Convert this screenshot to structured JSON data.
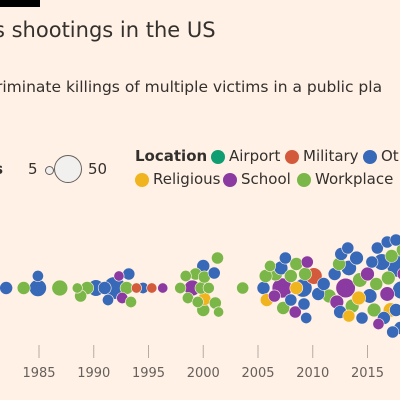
{
  "header": {
    "title": "s shootings in the US",
    "subtitle": "riminate killings of multiple victims in a public pla"
  },
  "size_legend": {
    "title": "es",
    "small_value": "5",
    "large_value": "50"
  },
  "location_legend": {
    "title": "Location",
    "items": [
      {
        "label": "Airport",
        "color": "#0f9d72"
      },
      {
        "label": "Military",
        "color": "#d45a3c"
      },
      {
        "label": "Oth",
        "color": "#3869b8"
      },
      {
        "label": "Religious",
        "color": "#f0b41e"
      },
      {
        "label": "School",
        "color": "#8a3aa0"
      },
      {
        "label": "Workplace",
        "color": "#7ab648"
      }
    ]
  },
  "chart_data": {
    "type": "scatter",
    "title": "s shootings in the US",
    "subtitle": "riminate killings of multiple victims in a public pla",
    "xlabel": "",
    "ylabel": "",
    "xlim": [
      1981.3,
      2018.5
    ],
    "x_ticks": [
      1985,
      1990,
      1995,
      2000,
      2005,
      2010,
      2015
    ],
    "size_scale": {
      "label": "es",
      "reference_values": [
        5,
        50
      ]
    },
    "colors": {
      "Airport": "#0f9d72",
      "Military": "#d45a3c",
      "Other": "#3869b8",
      "Religious": "#f0b41e",
      "School": "#8a3aa0",
      "Workplace": "#7ab648"
    },
    "points": [
      {
        "x": 1982.0,
        "y": 0,
        "size": 8,
        "location": "Other"
      },
      {
        "x": 1983.6,
        "y": 0,
        "size": 8,
        "location": "Workplace"
      },
      {
        "x": 1984.9,
        "y": 0,
        "size": 14,
        "location": "Other"
      },
      {
        "x": 1984.9,
        "y": 12,
        "size": 6,
        "location": "Other"
      },
      {
        "x": 1986.9,
        "y": 0,
        "size": 12,
        "location": "Workplace"
      },
      {
        "x": 1988.5,
        "y": 0,
        "size": 5,
        "location": "Workplace"
      },
      {
        "x": 1988.8,
        "y": -8,
        "size": 7,
        "location": "Workplace"
      },
      {
        "x": 1989.4,
        "y": 0,
        "size": 8,
        "location": "Workplace"
      },
      {
        "x": 1990.2,
        "y": 0,
        "size": 13,
        "location": "Other"
      },
      {
        "x": 1991.0,
        "y": 0,
        "size": 8,
        "location": "Other"
      },
      {
        "x": 1991.3,
        "y": -12,
        "size": 6,
        "location": "Other"
      },
      {
        "x": 1991.9,
        "y": 0,
        "size": 24,
        "location": "Other"
      },
      {
        "x": 1992.3,
        "y": 12,
        "size": 5,
        "location": "School"
      },
      {
        "x": 1992.6,
        "y": -10,
        "size": 6,
        "location": "School"
      },
      {
        "x": 1993.0,
        "y": 0,
        "size": 8,
        "location": "Workplace"
      },
      {
        "x": 1993.2,
        "y": 14,
        "size": 7,
        "location": "Other"
      },
      {
        "x": 1993.4,
        "y": -14,
        "size": 6,
        "location": "Workplace"
      },
      {
        "x": 1993.9,
        "y": 0,
        "size": 5,
        "location": "Military"
      },
      {
        "x": 1994.5,
        "y": 0,
        "size": 6,
        "location": "Other"
      },
      {
        "x": 1995.3,
        "y": 0,
        "size": 5,
        "location": "Military"
      },
      {
        "x": 1996.3,
        "y": 0,
        "size": 5,
        "location": "School"
      },
      {
        "x": 1997.9,
        "y": 0,
        "size": 6,
        "location": "Workplace"
      },
      {
        "x": 1998.4,
        "y": 12,
        "size": 6,
        "location": "Workplace"
      },
      {
        "x": 1998.6,
        "y": -10,
        "size": 6,
        "location": "Workplace"
      },
      {
        "x": 1999.0,
        "y": 0,
        "size": 12,
        "location": "School"
      },
      {
        "x": 1999.3,
        "y": 14,
        "size": 7,
        "location": "Workplace"
      },
      {
        "x": 1999.5,
        "y": -14,
        "size": 6,
        "location": "Workplace"
      },
      {
        "x": 1999.8,
        "y": 0,
        "size": 7,
        "location": "Workplace"
      },
      {
        "x": 2000.0,
        "y": 22,
        "size": 8,
        "location": "Other"
      },
      {
        "x": 2000.0,
        "y": -22,
        "size": 8,
        "location": "Workplace"
      },
      {
        "x": 2000.1,
        "y": 11,
        "size": 7,
        "location": "Workplace"
      },
      {
        "x": 2000.1,
        "y": -11,
        "size": 8,
        "location": "Religious"
      },
      {
        "x": 2000.5,
        "y": 0,
        "size": 6,
        "location": "Workplace"
      },
      {
        "x": 2001.0,
        "y": 15,
        "size": 7,
        "location": "Other"
      },
      {
        "x": 2001.1,
        "y": -15,
        "size": 7,
        "location": "Workplace"
      },
      {
        "x": 2001.3,
        "y": 30,
        "size": 7,
        "location": "Workplace"
      },
      {
        "x": 2001.4,
        "y": -24,
        "size": 5,
        "location": "Workplace"
      },
      {
        "x": 2003.6,
        "y": 0,
        "size": 7,
        "location": "Workplace"
      },
      {
        "x": 2005.5,
        "y": 0,
        "size": 8,
        "location": "Other"
      },
      {
        "x": 2005.7,
        "y": 12,
        "size": 8,
        "location": "Workplace"
      },
      {
        "x": 2005.8,
        "y": -12,
        "size": 8,
        "location": "Religious"
      },
      {
        "x": 2006.1,
        "y": 22,
        "size": 6,
        "location": "Workplace"
      },
      {
        "x": 2006.5,
        "y": -8,
        "size": 7,
        "location": "School"
      },
      {
        "x": 2006.6,
        "y": 14,
        "size": 9,
        "location": "Workplace"
      },
      {
        "x": 2007.2,
        "y": 0,
        "size": 19,
        "location": "School"
      },
      {
        "x": 2007.1,
        "y": 20,
        "size": 9,
        "location": "Other"
      },
      {
        "x": 2007.3,
        "y": -20,
        "size": 8,
        "location": "Workplace"
      },
      {
        "x": 2007.5,
        "y": 30,
        "size": 7,
        "location": "Other"
      },
      {
        "x": 2008.0,
        "y": 12,
        "size": 8,
        "location": "Workplace"
      },
      {
        "x": 2008.0,
        "y": -12,
        "size": 7,
        "location": "Other"
      },
      {
        "x": 2008.4,
        "y": -24,
        "size": 7,
        "location": "School"
      },
      {
        "x": 2008.5,
        "y": 0,
        "size": 8,
        "location": "Religious"
      },
      {
        "x": 2008.5,
        "y": 24,
        "size": 8,
        "location": "Workplace"
      },
      {
        "x": 2009.1,
        "y": 0,
        "size": 16,
        "location": "Other"
      },
      {
        "x": 2009.2,
        "y": -16,
        "size": 7,
        "location": "Other"
      },
      {
        "x": 2009.5,
        "y": 26,
        "size": 7,
        "location": "School"
      },
      {
        "x": 2009.4,
        "y": -30,
        "size": 6,
        "location": "Other"
      },
      {
        "x": 2009.3,
        "y": 14,
        "size": 8,
        "location": "Workplace"
      },
      {
        "x": 2010.1,
        "y": 12,
        "size": 13,
        "location": "Military"
      },
      {
        "x": 2010.5,
        "y": -6,
        "size": 8,
        "location": "Other"
      },
      {
        "x": 2011.0,
        "y": 4,
        "size": 8,
        "location": "Other"
      },
      {
        "x": 2011.5,
        "y": -8,
        "size": 9,
        "location": "Workplace"
      },
      {
        "x": 2012.0,
        "y": 14,
        "size": 8,
        "location": "Other"
      },
      {
        "x": 2012.2,
        "y": -14,
        "size": 9,
        "location": "School"
      },
      {
        "x": 2012.4,
        "y": 24,
        "size": 8,
        "location": "Workplace"
      },
      {
        "x": 2012.6,
        "y": 34,
        "size": 8,
        "location": "Other"
      },
      {
        "x": 2012.5,
        "y": -24,
        "size": 8,
        "location": "Other"
      },
      {
        "x": 2013.0,
        "y": 0,
        "size": 18,
        "location": "School"
      },
      {
        "x": 2013.3,
        "y": 20,
        "size": 11,
        "location": "Other"
      },
      {
        "x": 2013.6,
        "y": -18,
        "size": 9,
        "location": "Workplace"
      },
      {
        "x": 2013.2,
        "y": 40,
        "size": 7,
        "location": "Other"
      },
      {
        "x": 2013.3,
        "y": -28,
        "size": 7,
        "location": "Religious"
      },
      {
        "x": 2014.0,
        "y": 30,
        "size": 9,
        "location": "Other"
      },
      {
        "x": 2014.2,
        "y": -10,
        "size": 9,
        "location": "Religious"
      },
      {
        "x": 2014.3,
        "y": 8,
        "size": 10,
        "location": "Workplace"
      },
      {
        "x": 2014.5,
        "y": -30,
        "size": 7,
        "location": "Other"
      },
      {
        "x": 2015.0,
        "y": 14,
        "size": 9,
        "location": "School"
      },
      {
        "x": 2015.2,
        "y": -8,
        "size": 10,
        "location": "Other"
      },
      {
        "x": 2015.4,
        "y": 26,
        "size": 7,
        "location": "Other"
      },
      {
        "x": 2015.6,
        "y": -22,
        "size": 9,
        "location": "Workplace"
      },
      {
        "x": 2015.8,
        "y": 4,
        "size": 8,
        "location": "Workplace"
      },
      {
        "x": 2015.9,
        "y": 40,
        "size": 7,
        "location": "Other"
      },
      {
        "x": 2016.0,
        "y": -36,
        "size": 6,
        "location": "School"
      },
      {
        "x": 2016.3,
        "y": 26,
        "size": 13,
        "location": "Other"
      },
      {
        "x": 2016.5,
        "y": -30,
        "size": 8,
        "location": "Other"
      },
      {
        "x": 2016.8,
        "y": 46,
        "size": 7,
        "location": "Other"
      },
      {
        "x": 2016.9,
        "y": 10,
        "size": 9,
        "location": "Workplace"
      },
      {
        "x": 2016.8,
        "y": -6,
        "size": 10,
        "location": "School"
      },
      {
        "x": 2017.1,
        "y": -22,
        "size": 10,
        "location": "Religious"
      },
      {
        "x": 2017.2,
        "y": 32,
        "size": 8,
        "location": "Workplace"
      },
      {
        "x": 2017.3,
        "y": -44,
        "size": 7,
        "location": "Other"
      },
      {
        "x": 2017.8,
        "y": 22,
        "size": 24,
        "location": "Other"
      },
      {
        "x": 2017.6,
        "y": -22,
        "size": 8,
        "location": "Other"
      },
      {
        "x": 2017.6,
        "y": 48,
        "size": 7,
        "location": "Other"
      },
      {
        "x": 2018.1,
        "y": -2,
        "size": 15,
        "location": "Other"
      },
      {
        "x": 2018.0,
        "y": -40,
        "size": 8,
        "location": "Other"
      },
      {
        "x": 2018.3,
        "y": 14,
        "size": 8,
        "location": "School"
      },
      {
        "x": 2018.3,
        "y": 38,
        "size": 10,
        "location": "Workplace"
      }
    ]
  }
}
